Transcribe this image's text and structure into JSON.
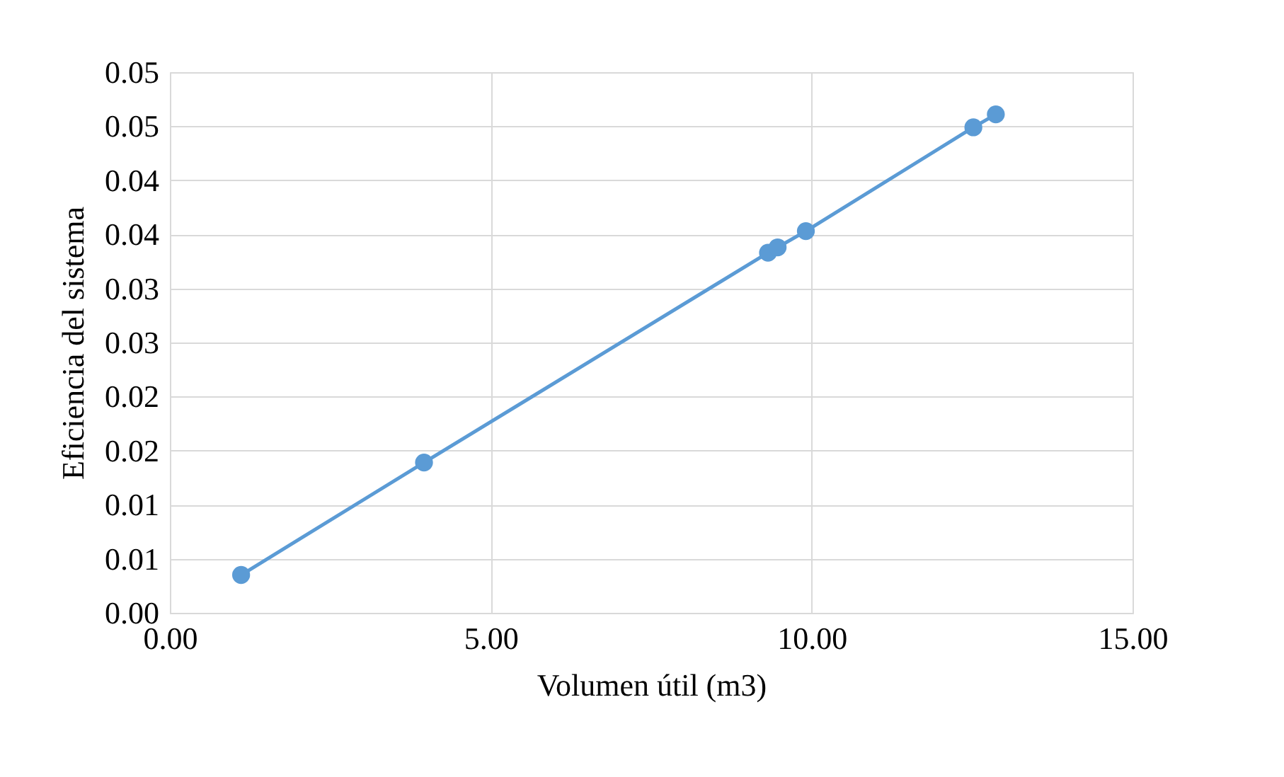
{
  "chart_data": {
    "type": "line",
    "xlabel": "Volumen útil (m3)",
    "ylabel": "Eficiencia del sistema",
    "x": [
      1.11,
      3.96,
      9.32,
      9.47,
      9.91,
      12.52,
      12.87
    ],
    "series": [
      {
        "color": "#5b9bd5",
        "values": [
          0.0035,
          0.0139,
          0.0333,
          0.0338,
          0.0353,
          0.0449,
          0.0461
        ]
      }
    ],
    "xlim": [
      0,
      15
    ],
    "xticks": [
      {
        "value": 0,
        "label": "0.00"
      },
      {
        "value": 5,
        "label": "5.00"
      },
      {
        "value": 10,
        "label": "10.00"
      },
      {
        "value": 15,
        "label": "15.00"
      }
    ],
    "ylim": [
      0,
      0.05
    ],
    "yticks": [
      {
        "value": 0,
        "label": "0.00"
      },
      {
        "value": 0.005,
        "label": "0.01"
      },
      {
        "value": 0.01,
        "label": "0.01"
      },
      {
        "value": 0.015,
        "label": "0.02"
      },
      {
        "value": 0.02,
        "label": "0.02"
      },
      {
        "value": 0.025,
        "label": "0.03"
      },
      {
        "value": 0.03,
        "label": "0.03"
      },
      {
        "value": 0.035,
        "label": "0.04"
      },
      {
        "value": 0.04,
        "label": "0.04"
      },
      {
        "value": 0.045,
        "label": "0.05"
      },
      {
        "value": 0.05,
        "label": "0.05"
      }
    ],
    "grid": true,
    "marker": "circle",
    "line_style": "solid"
  }
}
